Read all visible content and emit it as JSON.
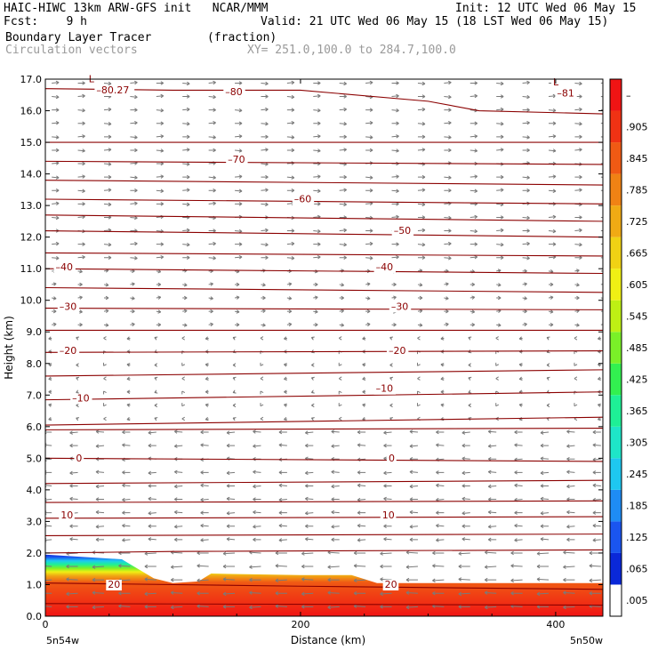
{
  "header": {
    "model_line": "HAIC-HIWC 13km ARW-GFS init   NCAR/MMM",
    "init_line": "Init: 12 UTC Wed 06 May 15",
    "fcst_line": "Fcst:    9 h",
    "valid_line": "Valid: 21 UTC Wed 06 May 15 (18 LST Wed 06 May 15)",
    "field_line": "Boundary Layer Tracer        (fraction)",
    "vector_line": "Circulation vectors",
    "xsec_line": "XY= 251.0,100.0 to 284.7,100.0"
  },
  "chart_data": {
    "type": "heatmap",
    "xlabel": "Distance (km)",
    "ylabel": "Height (km)",
    "xlim": [
      0,
      437
    ],
    "ylim": [
      0,
      17
    ],
    "x_ticks": [
      0,
      200,
      400
    ],
    "y_ticks": [
      "0.0",
      "1.0",
      "2.0",
      "3.0",
      "4.0",
      "5.0",
      "6.0",
      "7.0",
      "8.0",
      "9.0",
      "10.0",
      "11.0",
      "12.0",
      "13.0",
      "14.0",
      "15.0",
      "16.0",
      "17.0"
    ],
    "x_endpoints": {
      "left": "5n54w",
      "right": "5n50w"
    },
    "colorbar": {
      "ticks": [
        ".005",
        ".065",
        ".125",
        ".185",
        ".245",
        ".305",
        ".365",
        ".425",
        ".485",
        ".545",
        ".605",
        ".665",
        ".725",
        ".785",
        ".845",
        ".905",
        "–"
      ],
      "colors": [
        "#ffffff",
        "#0a28d8",
        "#1a55ef",
        "#1e8cf5",
        "#1ec8f0",
        "#1ee6c8",
        "#1ef096",
        "#32f050",
        "#7af028",
        "#bef014",
        "#f0f014",
        "#f0d214",
        "#f0aa14",
        "#f08214",
        "#f05a14",
        "#f03214",
        "#f01414"
      ]
    },
    "tracer_top_km": [
      [
        0,
        1.95
      ],
      [
        20,
        1.9
      ],
      [
        60,
        1.8
      ],
      [
        85,
        1.2
      ],
      [
        100,
        1.05
      ],
      [
        120,
        1.1
      ],
      [
        130,
        1.35
      ],
      [
        200,
        1.3
      ],
      [
        240,
        1.3
      ],
      [
        260,
        1.05
      ],
      [
        320,
        1.05
      ],
      [
        437,
        1.05
      ]
    ],
    "isotherms": [
      {
        "y": [
          [
            0,
            16.7
          ],
          [
            100,
            16.65
          ],
          [
            200,
            16.65
          ],
          [
            300,
            16.3
          ],
          [
            340,
            16.0
          ],
          [
            437,
            15.9
          ]
        ]
      },
      {
        "y": [
          [
            0,
            15.0
          ],
          [
            437,
            15.0
          ]
        ]
      },
      {
        "y": [
          [
            0,
            14.4
          ],
          [
            437,
            14.3
          ]
        ]
      },
      {
        "y": [
          [
            0,
            13.8
          ],
          [
            437,
            13.65
          ]
        ]
      },
      {
        "y": [
          [
            0,
            13.2
          ],
          [
            437,
            13.05
          ]
        ]
      },
      {
        "y": [
          [
            0,
            12.7
          ],
          [
            437,
            12.5
          ]
        ]
      },
      {
        "y": [
          [
            0,
            12.2
          ],
          [
            437,
            12.0
          ]
        ]
      },
      {
        "y": [
          [
            0,
            11.5
          ],
          [
            437,
            11.4
          ]
        ]
      },
      {
        "y": [
          [
            0,
            11.0
          ],
          [
            437,
            10.85
          ]
        ]
      },
      {
        "y": [
          [
            0,
            10.4
          ],
          [
            437,
            10.25
          ]
        ]
      },
      {
        "y": [
          [
            0,
            9.75
          ],
          [
            437,
            9.7
          ]
        ]
      },
      {
        "y": [
          [
            0,
            9.05
          ],
          [
            437,
            9.05
          ]
        ]
      },
      {
        "y": [
          [
            0,
            8.35
          ],
          [
            437,
            8.4
          ]
        ]
      },
      {
        "y": [
          [
            0,
            7.6
          ],
          [
            437,
            7.8
          ]
        ]
      },
      {
        "y": [
          [
            0,
            6.85
          ],
          [
            437,
            7.1
          ]
        ]
      },
      {
        "y": [
          [
            0,
            6.05
          ],
          [
            437,
            6.3
          ]
        ]
      },
      {
        "y": [
          [
            0,
            5.9
          ],
          [
            437,
            5.95
          ]
        ]
      },
      {
        "y": [
          [
            0,
            5.0
          ],
          [
            437,
            4.9
          ]
        ]
      },
      {
        "y": [
          [
            0,
            4.2
          ],
          [
            437,
            4.3
          ]
        ]
      },
      {
        "y": [
          [
            0,
            3.6
          ],
          [
            437,
            3.65
          ]
        ]
      },
      {
        "y": [
          [
            0,
            3.1
          ],
          [
            437,
            3.15
          ]
        ]
      },
      {
        "y": [
          [
            0,
            2.55
          ],
          [
            437,
            2.6
          ]
        ]
      },
      {
        "y": [
          [
            0,
            2.0
          ],
          [
            100,
            2.05
          ],
          [
            437,
            2.1
          ]
        ]
      },
      {
        "y": [
          [
            0,
            1.05
          ],
          [
            200,
            0.95
          ],
          [
            437,
            0.85
          ]
        ]
      },
      {
        "y": [
          [
            0,
            0.4
          ],
          [
            437,
            0.35
          ]
        ]
      }
    ],
    "contour_labels": [
      {
        "text": "–80.27",
        "x": 40,
        "y": 16.55
      },
      {
        "text": "L",
        "x": 34,
        "y": 16.9
      },
      {
        "text": "–80",
        "x": 141,
        "y": 16.5
      },
      {
        "text": "L",
        "x": 398,
        "y": 16.8
      },
      {
        "text": "–81",
        "x": 401,
        "y": 16.45
      },
      {
        "text": "–70",
        "x": 143,
        "y": 14.35
      },
      {
        "text": "–60",
        "x": 195,
        "y": 13.1
      },
      {
        "text": "–50",
        "x": 273,
        "y": 12.1
      },
      {
        "text": "–40",
        "x": 8,
        "y": 10.95
      },
      {
        "text": "–40",
        "x": 259,
        "y": 10.95
      },
      {
        "text": "–30",
        "x": 11,
        "y": 9.7
      },
      {
        "text": "–30",
        "x": 271,
        "y": 9.7
      },
      {
        "text": "–20",
        "x": 11,
        "y": 8.3
      },
      {
        "text": "–20",
        "x": 269,
        "y": 8.3
      },
      {
        "text": "–10",
        "x": 21,
        "y": 6.8
      },
      {
        "text": "–10",
        "x": 259,
        "y": 7.1
      },
      {
        "text": "0",
        "x": 24,
        "y": 4.9
      },
      {
        "text": "0",
        "x": 269,
        "y": 4.9
      },
      {
        "text": "10",
        "x": 12,
        "y": 3.1
      },
      {
        "text": "10",
        "x": 264,
        "y": 3.1
      },
      {
        "text": "20",
        "x": 49,
        "y": 0.9
      },
      {
        "text": "20",
        "x": 266,
        "y": 0.9
      }
    ]
  }
}
